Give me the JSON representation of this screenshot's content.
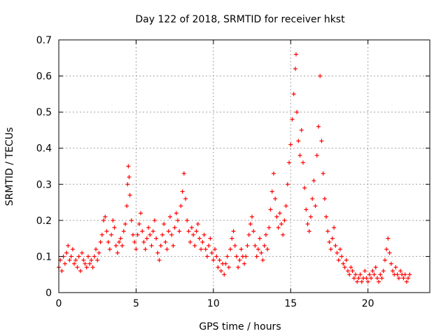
{
  "chart_data": {
    "type": "scatter",
    "title": "Day 122 of 2018, SRMTID for receiver hkst",
    "xlabel": "GPS time / hours",
    "ylabel": "SRMTID / TECUs",
    "xlim": [
      0,
      24
    ],
    "ylim": [
      0,
      0.7
    ],
    "x_ticks": [
      0,
      5,
      10,
      15,
      20
    ],
    "x_tick_labels": [
      "0",
      "5",
      "10",
      "15",
      "20"
    ],
    "y_ticks": [
      0,
      0.1,
      0.2,
      0.3,
      0.4,
      0.5,
      0.6,
      0.7
    ],
    "y_tick_labels": [
      "0",
      "0.1",
      "0.2",
      "0.3",
      "0.4",
      "0.5",
      "0.6",
      "0.7"
    ],
    "grid": true,
    "marker": "+",
    "marker_color": "#ff0000",
    "series": [
      {
        "name": "SRMTID",
        "points": [
          [
            0.0,
            0.07
          ],
          [
            0.1,
            0.09
          ],
          [
            0.2,
            0.06
          ],
          [
            0.3,
            0.1
          ],
          [
            0.4,
            0.08
          ],
          [
            0.5,
            0.11
          ],
          [
            0.6,
            0.13
          ],
          [
            0.7,
            0.09
          ],
          [
            0.8,
            0.1
          ],
          [
            0.9,
            0.12
          ],
          [
            1.0,
            0.08
          ],
          [
            1.1,
            0.09
          ],
          [
            1.2,
            0.07
          ],
          [
            1.3,
            0.1
          ],
          [
            1.4,
            0.06
          ],
          [
            1.5,
            0.11
          ],
          [
            1.6,
            0.09
          ],
          [
            1.7,
            0.08
          ],
          [
            1.8,
            0.07
          ],
          [
            1.9,
            0.1
          ],
          [
            2.0,
            0.08
          ],
          [
            2.1,
            0.09
          ],
          [
            2.2,
            0.07
          ],
          [
            2.3,
            0.1
          ],
          [
            2.4,
            0.12
          ],
          [
            2.5,
            0.09
          ],
          [
            2.6,
            0.11
          ],
          [
            2.7,
            0.14
          ],
          [
            2.8,
            0.16
          ],
          [
            2.9,
            0.2
          ],
          [
            3.0,
            0.21
          ],
          [
            3.1,
            0.17
          ],
          [
            3.2,
            0.14
          ],
          [
            3.3,
            0.12
          ],
          [
            3.4,
            0.16
          ],
          [
            3.5,
            0.2
          ],
          [
            3.6,
            0.18
          ],
          [
            3.7,
            0.13
          ],
          [
            3.8,
            0.11
          ],
          [
            3.9,
            0.14
          ],
          [
            4.0,
            0.15
          ],
          [
            4.1,
            0.13
          ],
          [
            4.2,
            0.17
          ],
          [
            4.3,
            0.19
          ],
          [
            4.4,
            0.24
          ],
          [
            4.45,
            0.3
          ],
          [
            4.5,
            0.35
          ],
          [
            4.55,
            0.32
          ],
          [
            4.6,
            0.27
          ],
          [
            4.7,
            0.2
          ],
          [
            4.8,
            0.16
          ],
          [
            4.9,
            0.14
          ],
          [
            5.0,
            0.12
          ],
          [
            5.1,
            0.16
          ],
          [
            5.2,
            0.19
          ],
          [
            5.3,
            0.22
          ],
          [
            5.4,
            0.17
          ],
          [
            5.5,
            0.14
          ],
          [
            5.6,
            0.12
          ],
          [
            5.7,
            0.15
          ],
          [
            5.8,
            0.18
          ],
          [
            5.9,
            0.16
          ],
          [
            6.0,
            0.13
          ],
          [
            6.1,
            0.17
          ],
          [
            6.2,
            0.2
          ],
          [
            6.3,
            0.15
          ],
          [
            6.4,
            0.11
          ],
          [
            6.5,
            0.09
          ],
          [
            6.6,
            0.13
          ],
          [
            6.7,
            0.16
          ],
          [
            6.8,
            0.19
          ],
          [
            6.9,
            0.14
          ],
          [
            7.0,
            0.12
          ],
          [
            7.1,
            0.17
          ],
          [
            7.2,
            0.21
          ],
          [
            7.3,
            0.16
          ],
          [
            7.4,
            0.13
          ],
          [
            7.5,
            0.18
          ],
          [
            7.6,
            0.22
          ],
          [
            7.7,
            0.2
          ],
          [
            7.8,
            0.17
          ],
          [
            7.9,
            0.24
          ],
          [
            8.0,
            0.28
          ],
          [
            8.1,
            0.33
          ],
          [
            8.2,
            0.26
          ],
          [
            8.3,
            0.2
          ],
          [
            8.4,
            0.17
          ],
          [
            8.5,
            0.14
          ],
          [
            8.6,
            0.18
          ],
          [
            8.7,
            0.16
          ],
          [
            8.8,
            0.13
          ],
          [
            8.9,
            0.17
          ],
          [
            9.0,
            0.19
          ],
          [
            9.1,
            0.15
          ],
          [
            9.2,
            0.12
          ],
          [
            9.3,
            0.14
          ],
          [
            9.4,
            0.16
          ],
          [
            9.5,
            0.12
          ],
          [
            9.6,
            0.1
          ],
          [
            9.7,
            0.13
          ],
          [
            9.8,
            0.15
          ],
          [
            9.9,
            0.11
          ],
          [
            10.0,
            0.09
          ],
          [
            10.1,
            0.12
          ],
          [
            10.2,
            0.1
          ],
          [
            10.3,
            0.07
          ],
          [
            10.4,
            0.09
          ],
          [
            10.5,
            0.06
          ],
          [
            10.6,
            0.08
          ],
          [
            10.7,
            0.05
          ],
          [
            10.8,
            0.08
          ],
          [
            10.9,
            0.1
          ],
          [
            11.0,
            0.07
          ],
          [
            11.1,
            0.12
          ],
          [
            11.2,
            0.15
          ],
          [
            11.3,
            0.17
          ],
          [
            11.4,
            0.13
          ],
          [
            11.5,
            0.1
          ],
          [
            11.6,
            0.07
          ],
          [
            11.7,
            0.09
          ],
          [
            11.8,
            0.12
          ],
          [
            11.9,
            0.1
          ],
          [
            12.0,
            0.08
          ],
          [
            12.1,
            0.1
          ],
          [
            12.2,
            0.13
          ],
          [
            12.3,
            0.16
          ],
          [
            12.4,
            0.19
          ],
          [
            12.5,
            0.21
          ],
          [
            12.6,
            0.17
          ],
          [
            12.7,
            0.13
          ],
          [
            12.8,
            0.1
          ],
          [
            12.9,
            0.12
          ],
          [
            13.0,
            0.15
          ],
          [
            13.1,
            0.11
          ],
          [
            13.2,
            0.09
          ],
          [
            13.3,
            0.13
          ],
          [
            13.4,
            0.16
          ],
          [
            13.5,
            0.12
          ],
          [
            13.6,
            0.18
          ],
          [
            13.7,
            0.23
          ],
          [
            13.8,
            0.28
          ],
          [
            13.9,
            0.33
          ],
          [
            14.0,
            0.26
          ],
          [
            14.1,
            0.21
          ],
          [
            14.2,
            0.18
          ],
          [
            14.3,
            0.22
          ],
          [
            14.4,
            0.19
          ],
          [
            14.5,
            0.16
          ],
          [
            14.6,
            0.2
          ],
          [
            14.7,
            0.24
          ],
          [
            14.8,
            0.3
          ],
          [
            14.9,
            0.36
          ],
          [
            15.0,
            0.41
          ],
          [
            15.1,
            0.48
          ],
          [
            15.2,
            0.55
          ],
          [
            15.3,
            0.62
          ],
          [
            15.35,
            0.66
          ],
          [
            15.4,
            0.5
          ],
          [
            15.5,
            0.42
          ],
          [
            15.6,
            0.38
          ],
          [
            15.7,
            0.45
          ],
          [
            15.8,
            0.36
          ],
          [
            15.9,
            0.29
          ],
          [
            16.0,
            0.23
          ],
          [
            16.1,
            0.19
          ],
          [
            16.2,
            0.17
          ],
          [
            16.3,
            0.21
          ],
          [
            16.4,
            0.26
          ],
          [
            16.5,
            0.31
          ],
          [
            16.6,
            0.24
          ],
          [
            16.7,
            0.38
          ],
          [
            16.8,
            0.46
          ],
          [
            16.9,
            0.6
          ],
          [
            17.0,
            0.42
          ],
          [
            17.1,
            0.33
          ],
          [
            17.2,
            0.26
          ],
          [
            17.3,
            0.21
          ],
          [
            17.4,
            0.17
          ],
          [
            17.5,
            0.14
          ],
          [
            17.6,
            0.12
          ],
          [
            17.7,
            0.15
          ],
          [
            17.8,
            0.18
          ],
          [
            17.9,
            0.13
          ],
          [
            18.0,
            0.11
          ],
          [
            18.1,
            0.09
          ],
          [
            18.2,
            0.12
          ],
          [
            18.3,
            0.1
          ],
          [
            18.4,
            0.08
          ],
          [
            18.5,
            0.07
          ],
          [
            18.6,
            0.09
          ],
          [
            18.7,
            0.06
          ],
          [
            18.8,
            0.05
          ],
          [
            18.9,
            0.07
          ],
          [
            19.0,
            0.06
          ],
          [
            19.1,
            0.04
          ],
          [
            19.2,
            0.05
          ],
          [
            19.3,
            0.03
          ],
          [
            19.4,
            0.04
          ],
          [
            19.5,
            0.05
          ],
          [
            19.6,
            0.03
          ],
          [
            19.7,
            0.04
          ],
          [
            19.8,
            0.06
          ],
          [
            19.9,
            0.04
          ],
          [
            20.0,
            0.03
          ],
          [
            20.1,
            0.05
          ],
          [
            20.2,
            0.04
          ],
          [
            20.3,
            0.06
          ],
          [
            20.4,
            0.05
          ],
          [
            20.5,
            0.07
          ],
          [
            20.6,
            0.04
          ],
          [
            20.7,
            0.03
          ],
          [
            20.8,
            0.05
          ],
          [
            20.9,
            0.04
          ],
          [
            21.0,
            0.06
          ],
          [
            21.1,
            0.09
          ],
          [
            21.2,
            0.12
          ],
          [
            21.3,
            0.15
          ],
          [
            21.4,
            0.11
          ],
          [
            21.5,
            0.08
          ],
          [
            21.6,
            0.06
          ],
          [
            21.7,
            0.05
          ],
          [
            21.8,
            0.07
          ],
          [
            21.9,
            0.05
          ],
          [
            22.0,
            0.04
          ],
          [
            22.1,
            0.06
          ],
          [
            22.2,
            0.05
          ],
          [
            22.3,
            0.04
          ],
          [
            22.4,
            0.05
          ],
          [
            22.5,
            0.03
          ],
          [
            22.6,
            0.04
          ],
          [
            22.7,
            0.05
          ]
        ]
      }
    ]
  }
}
